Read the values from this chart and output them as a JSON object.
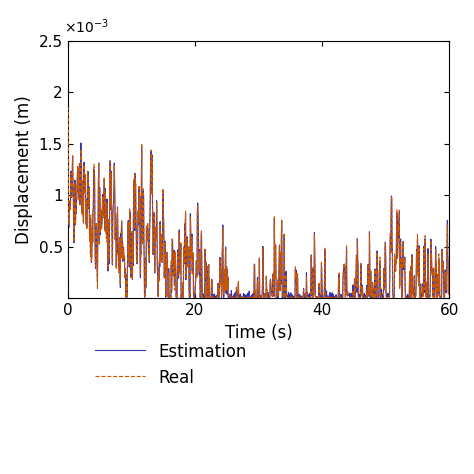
{
  "title": "",
  "xlabel": "Time (s)",
  "ylabel": "Displacement (m)",
  "xlim": [
    0,
    60
  ],
  "ylim": [
    0,
    0.0025
  ],
  "yticks": [
    0,
    0.0005,
    0.001,
    0.0015,
    0.002,
    0.0025
  ],
  "xticks": [
    0,
    20,
    40,
    60
  ],
  "real_color": "#CC5500",
  "est_color": "#3333AA",
  "real_linewidth": 0.8,
  "est_linewidth": 0.8,
  "real_linestyle": "--",
  "est_linestyle": "-",
  "legend_real": "Real",
  "legend_est": "Estimation",
  "dt": 0.05,
  "duration": 60,
  "seed": 7,
  "background_color": "#ffffff",
  "font_size": 11
}
